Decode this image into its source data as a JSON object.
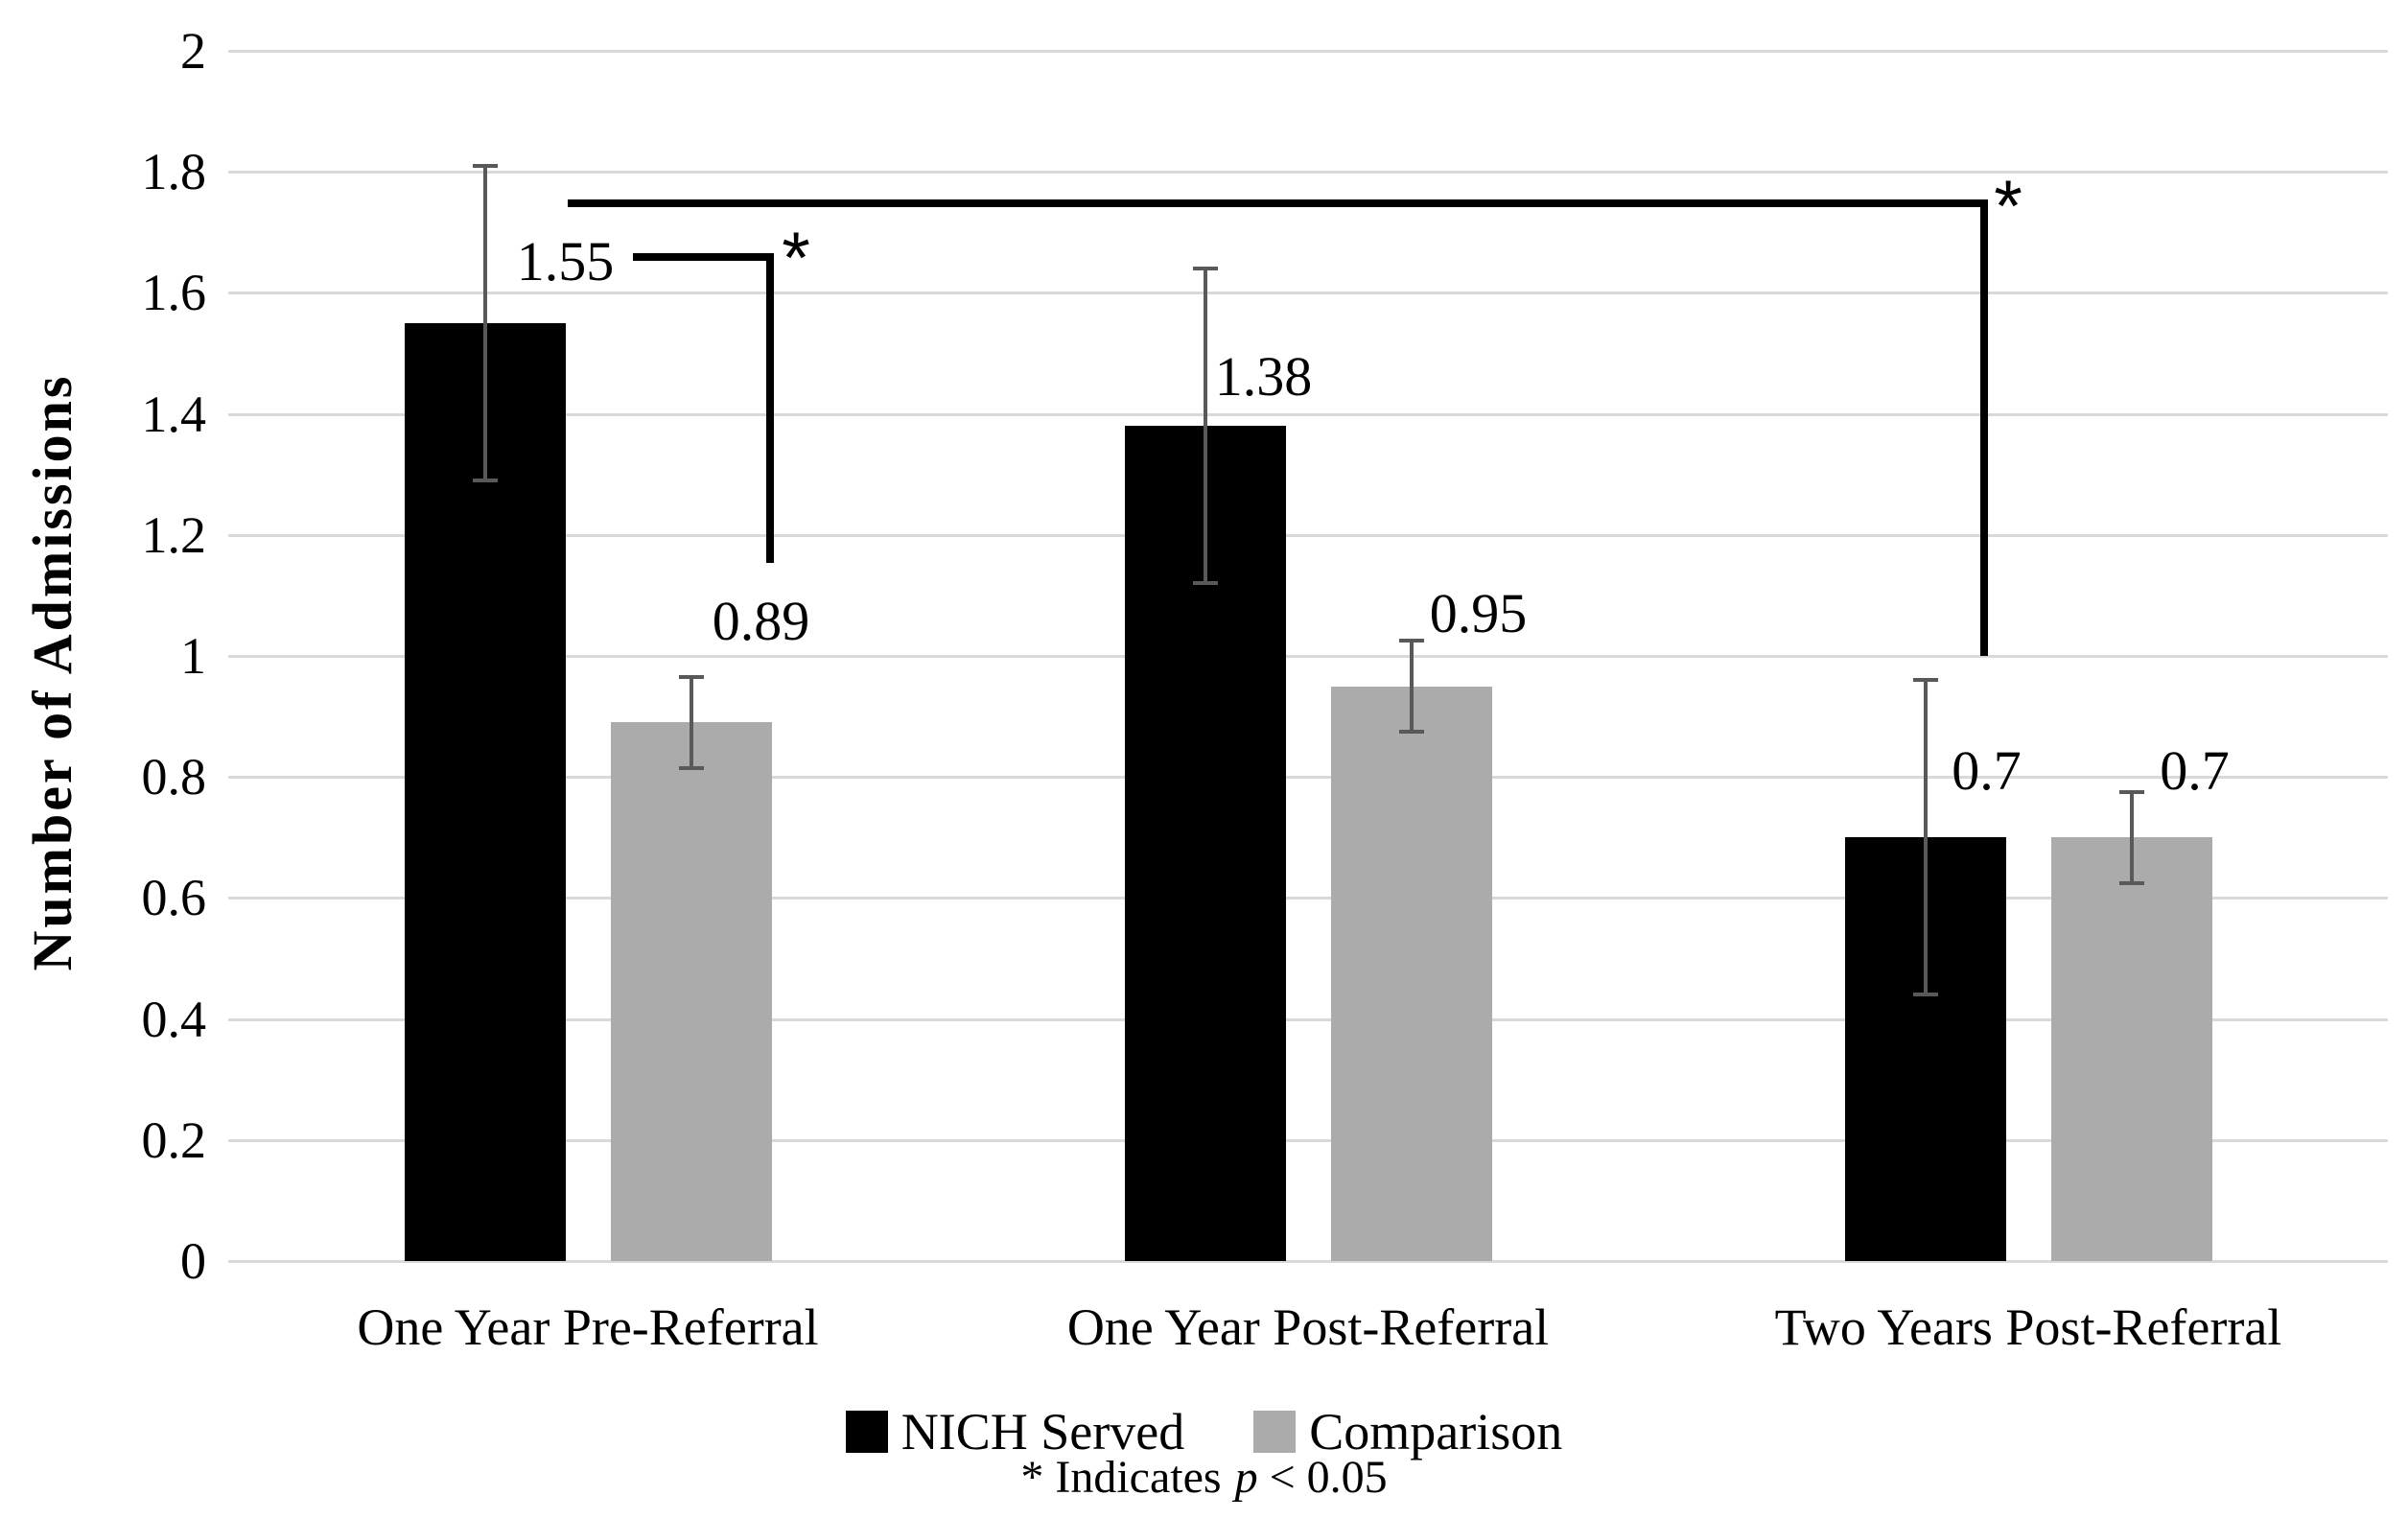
{
  "page": {
    "background_color": "#ffffff",
    "text_color": "#000000"
  },
  "chart_data": {
    "type": "bar",
    "title": "",
    "xlabel": "",
    "ylabel": "Number of Admissions",
    "categories": [
      "One Year Pre-Referral",
      "One Year Post-Referral",
      "Two Years Post-Referral"
    ],
    "series": [
      {
        "name": "NICH Served",
        "color": "#000000",
        "values": [
          1.55,
          1.38,
          0.7
        ],
        "data_labels": [
          "1.55",
          "1.38",
          "0.7"
        ],
        "error_low": [
          1.29,
          1.12,
          0.44
        ],
        "error_high": [
          1.81,
          1.64,
          0.96
        ]
      },
      {
        "name": "Comparison",
        "color": "#ababab",
        "values": [
          0.89,
          0.95,
          0.7
        ],
        "data_labels": [
          "0.89",
          "0.95",
          "0.7"
        ],
        "error_low": [
          0.815,
          0.875,
          0.625
        ],
        "error_high": [
          0.965,
          1.025,
          0.775
        ]
      }
    ],
    "ylim": [
      0,
      2
    ],
    "yticks": [
      {
        "v": 2,
        "label": "2"
      },
      {
        "v": 1.8,
        "label": "1.8"
      },
      {
        "v": 1.6,
        "label": "1.6"
      },
      {
        "v": 1.4,
        "label": "1.4"
      },
      {
        "v": 1.2,
        "label": "1.2"
      },
      {
        "v": 1,
        "label": "1"
      },
      {
        "v": 0.8,
        "label": "0.8"
      },
      {
        "v": 0.6,
        "label": "0.6"
      },
      {
        "v": 0.4,
        "label": "0.4"
      },
      {
        "v": 0.2,
        "label": "0.2"
      },
      {
        "v": 0,
        "label": "0"
      }
    ],
    "grid": true,
    "gridline_color": "#d9d9d9",
    "error_bar_color": "#595959",
    "legend_position": "bottom",
    "significance": [
      {
        "label": "*",
        "between": [
          "NICH Served @ One Year Pre-Referral",
          "Comparison @ One Year Pre-Referral"
        ]
      },
      {
        "label": "*",
        "between": [
          "NICH Served @ One Year Pre-Referral",
          "NICH Served @ Two Years Post-Referral"
        ]
      }
    ],
    "footnote": {
      "prefix": "* Indicates",
      "p_symbol": "p",
      "suffix": "< 0.05"
    }
  }
}
